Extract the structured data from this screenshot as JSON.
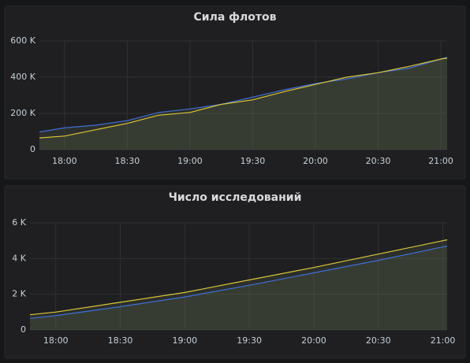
{
  "chart_data": [
    {
      "type": "line",
      "title": "Сила флотов",
      "x": [
        "17:48",
        "18:00",
        "18:15",
        "18:30",
        "18:45",
        "19:00",
        "19:15",
        "19:30",
        "19:45",
        "20:00",
        "20:15",
        "20:30",
        "20:45",
        "21:00",
        "21:03"
      ],
      "xlim": [
        "17:48",
        "21:03"
      ],
      "xticks": [
        "18:00",
        "18:30",
        "19:00",
        "19:30",
        "20:00",
        "20:30",
        "21:00"
      ],
      "ylim": [
        0,
        600000
      ],
      "yticks": [
        0,
        {
          "value": 200000,
          "label": "200 K"
        },
        {
          "value": 400000,
          "label": "400 K"
        },
        {
          "value": 600000,
          "label": "600 K"
        }
      ],
      "grid": true,
      "series": [
        {
          "color": "#3e6fd6",
          "values": [
            98000,
            120000,
            135000,
            160000,
            205000,
            225000,
            250000,
            290000,
            330000,
            365000,
            390000,
            425000,
            450000,
            500000,
            510000
          ]
        },
        {
          "color": "#d9c537",
          "values": [
            65000,
            75000,
            110000,
            145000,
            190000,
            205000,
            250000,
            275000,
            320000,
            360000,
            400000,
            425000,
            460000,
            500000,
            505000
          ]
        }
      ]
    },
    {
      "type": "line",
      "title": "Число исследований",
      "x": [
        "17:48",
        "18:00",
        "18:30",
        "19:00",
        "19:30",
        "20:00",
        "20:30",
        "21:00",
        "21:02"
      ],
      "xlim": [
        "17:48",
        "21:02"
      ],
      "xticks": [
        "18:00",
        "18:30",
        "19:00",
        "19:30",
        "20:00",
        "20:30",
        "21:00"
      ],
      "ylim": [
        0,
        6000
      ],
      "yticks": [
        0,
        {
          "value": 2000,
          "label": "2 K"
        },
        {
          "value": 4000,
          "label": "4 K"
        },
        {
          "value": 6000,
          "label": "6 K"
        }
      ],
      "grid": true,
      "series": [
        {
          "color": "#d9c537",
          "values": [
            850,
            1000,
            1550,
            2100,
            2800,
            3500,
            4250,
            5000,
            5050
          ]
        },
        {
          "color": "#3e6fd6",
          "values": [
            650,
            800,
            1300,
            1850,
            2500,
            3200,
            3900,
            4650,
            4700
          ]
        }
      ]
    }
  ]
}
